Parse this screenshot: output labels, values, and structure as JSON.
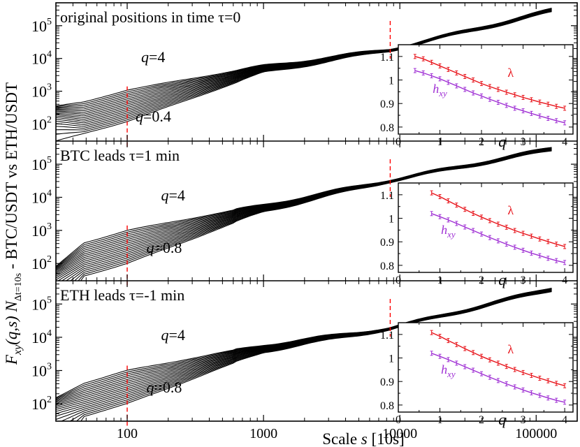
{
  "chart_data": {
    "type": "line",
    "title": "",
    "xlabel": "Scale s [10s]",
    "xlabel_parts": {
      "pre": "Scale ",
      "var": "s",
      "post": " [10s]"
    },
    "ylabel": "F_xy(q,s) N_Δt=10s - BTC/USDT vs ETH/USDT",
    "ylabel_parts": {
      "F": "F",
      "sub": "xy",
      "args": "(q,s)",
      "N": "N",
      "nsub": "Δt=10s",
      "pair": " - BTC/USDT vs ETH/USDT"
    },
    "x_scale": "log",
    "y_scale": "log",
    "xlim": [
      30,
      200000
    ],
    "x_ticks": [
      100,
      1000,
      10000,
      100000
    ],
    "x_tick_labels": [
      "100",
      "1000",
      "10000",
      "100000"
    ],
    "y_ticks": [
      100,
      1000,
      10000,
      100000
    ],
    "y_tick_labels": [
      {
        "base": "10",
        "exp": "2"
      },
      {
        "base": "10",
        "exp": "3"
      },
      {
        "base": "10",
        "exp": "4"
      },
      {
        "base": "10",
        "exp": "5"
      }
    ],
    "q_var_label": "q",
    "inset_x_label": "q",
    "curve_count": 19,
    "vertical_markers_s": [
      100,
      8500
    ],
    "panels": [
      {
        "name": "original positions in time τ=0",
        "ylim": [
          30,
          500000
        ],
        "q_range": [
          0.4,
          4
        ],
        "q_high_label": "=4",
        "q_low_label": "=0.4",
        "q_high_anchor_s": 100,
        "q_low_anchor_s": 100,
        "s_start": 30,
        "s_end": 130000,
        "curve_end_range": [
          250000,
          320000
        ],
        "curve_start_range": [
          30,
          350
        ],
        "curve_at_100_range": [
          120,
          1100
        ],
        "curve_at_1000": 6000,
        "curve_at_8500": 20000,
        "inset": {
          "q": [
            0.4,
            0.6,
            0.8,
            1.0,
            1.2,
            1.4,
            1.6,
            1.8,
            2.0,
            2.2,
            2.4,
            2.6,
            2.8,
            3.0,
            3.2,
            3.4,
            3.6,
            3.8,
            4.0
          ],
          "xlim": [
            0,
            4.2
          ],
          "ylim": [
            0.77,
            1.15
          ],
          "x_ticks": [
            0,
            1,
            2,
            3,
            4
          ],
          "y_ticks": [
            0.8,
            0.9,
            1.0,
            1.1
          ],
          "y_tick_labels": [
            "0.8",
            "0.9",
            "1",
            "1.1"
          ],
          "series": [
            {
              "name": "λ",
              "color": "#e8141b",
              "values": [
                1.1,
                1.09,
                1.075,
                1.06,
                1.045,
                1.03,
                1.015,
                1.0,
                0.985,
                0.972,
                0.96,
                0.948,
                0.937,
                0.926,
                0.916,
                0.906,
                0.897,
                0.888,
                0.88
              ],
              "label_anchor_q": 2.7
            },
            {
              "name": "h",
              "name_sub": "xy",
              "color": "#9f2fd4",
              "values": [
                1.04,
                1.03,
                1.018,
                1.005,
                0.99,
                0.975,
                0.96,
                0.945,
                0.932,
                0.918,
                0.905,
                0.892,
                0.88,
                0.869,
                0.858,
                0.847,
                0.837,
                0.827,
                0.818
              ],
              "label_anchor_q": 1.0
            }
          ]
        }
      },
      {
        "name": "BTC leads τ=1 min",
        "ylim": [
          30,
          500000
        ],
        "q_range": [
          0.8,
          4
        ],
        "q_high_label": "=4",
        "q_low_label": "=0.8",
        "q_high_anchor_s": 140,
        "q_low_anchor_s": 120,
        "s_start": 30,
        "s_end": 130000,
        "curve_end_range": [
          250000,
          320000
        ],
        "curve_start_range": [
          0,
          80
        ],
        "curve_at_100_range": [
          100,
          1000
        ],
        "curve_at_1000": 6000,
        "curve_at_8500": 35000,
        "inset": {
          "q": [
            0.8,
            1.0,
            1.2,
            1.4,
            1.6,
            1.8,
            2.0,
            2.2,
            2.4,
            2.6,
            2.8,
            3.0,
            3.2,
            3.4,
            3.6,
            3.8,
            4.0
          ],
          "xlim": [
            0,
            4.2
          ],
          "ylim": [
            0.77,
            1.15
          ],
          "x_ticks": [
            0,
            1,
            2,
            3,
            4
          ],
          "y_ticks": [
            0.8,
            0.9,
            1.0,
            1.1
          ],
          "y_tick_labels": [
            "0.8",
            "0.9",
            "1",
            "1.1"
          ],
          "series": [
            {
              "name": "λ",
              "color": "#e8141b",
              "values": [
                1.108,
                1.092,
                1.074,
                1.056,
                1.038,
                1.021,
                1.005,
                0.99,
                0.975,
                0.962,
                0.948,
                0.936,
                0.924,
                0.912,
                0.901,
                0.89,
                0.88
              ],
              "label_anchor_q": 2.7
            },
            {
              "name": "h",
              "name_sub": "xy",
              "color": "#9f2fd4",
              "values": [
                1.02,
                1.007,
                0.993,
                0.978,
                0.963,
                0.948,
                0.933,
                0.918,
                0.904,
                0.89,
                0.877,
                0.864,
                0.852,
                0.841,
                0.83,
                0.82,
                0.812
              ],
              "label_anchor_q": 1.2
            }
          ]
        }
      },
      {
        "name": "ETH leads τ=-1 min",
        "ylim": [
          30,
          500000
        ],
        "q_range": [
          0.8,
          4
        ],
        "q_high_label": "=4",
        "q_low_label": "=0.8",
        "q_high_anchor_s": 140,
        "q_low_anchor_s": 120,
        "s_start": 30,
        "s_end": 130000,
        "curve_end_range": [
          250000,
          320000
        ],
        "curve_start_range": [
          0,
          150
        ],
        "curve_at_100_range": [
          100,
          1000
        ],
        "curve_at_1000": 6000,
        "curve_at_8500": 20000,
        "inset": {
          "q": [
            0.8,
            1.0,
            1.2,
            1.4,
            1.6,
            1.8,
            2.0,
            2.2,
            2.4,
            2.6,
            2.8,
            3.0,
            3.2,
            3.4,
            3.6,
            3.8,
            4.0
          ],
          "xlim": [
            0,
            4.2
          ],
          "ylim": [
            0.77,
            1.15
          ],
          "x_ticks": [
            0,
            1,
            2,
            3,
            4
          ],
          "y_ticks": [
            0.8,
            0.9,
            1.0,
            1.1
          ],
          "y_tick_labels": [
            "0.8",
            "0.9",
            "1",
            "1.1"
          ],
          "series": [
            {
              "name": "λ",
              "color": "#e8141b",
              "values": [
                1.108,
                1.092,
                1.074,
                1.057,
                1.04,
                1.023,
                1.007,
                0.992,
                0.978,
                0.964,
                0.951,
                0.938,
                0.926,
                0.914,
                0.903,
                0.892,
                0.882
              ],
              "label_anchor_q": 2.7
            },
            {
              "name": "h",
              "name_sub": "xy",
              "color": "#9f2fd4",
              "values": [
                1.02,
                1.007,
                0.993,
                0.978,
                0.963,
                0.948,
                0.933,
                0.918,
                0.904,
                0.89,
                0.877,
                0.864,
                0.852,
                0.841,
                0.83,
                0.82,
                0.812
              ],
              "label_anchor_q": 1.2
            }
          ]
        }
      }
    ]
  }
}
